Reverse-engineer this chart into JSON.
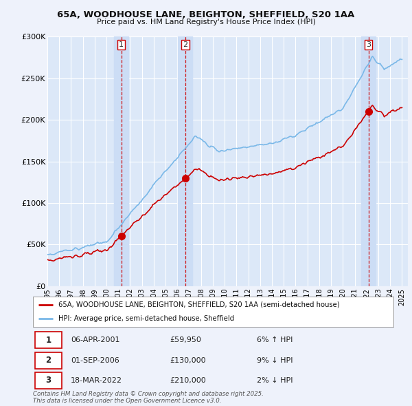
{
  "title_line1": "65A, WOODHOUSE LANE, BEIGHTON, SHEFFIELD, S20 1AA",
  "title_line2": "Price paid vs. HM Land Registry's House Price Index (HPI)",
  "background_color": "#eef2fb",
  "plot_bg_color": "#dce8f8",
  "grid_color": "#ffffff",
  "sale_color": "#cc0000",
  "hpi_color": "#7ab8e8",
  "vline_color": "#cc0000",
  "shade_color": "#ccddf5",
  "legend_sale_label": "65A, WOODHOUSE LANE, BEIGHTON, SHEFFIELD, S20 1AA (semi-detached house)",
  "legend_hpi_label": "HPI: Average price, semi-detached house, Sheffield",
  "table_data": [
    [
      "1",
      "06-APR-2001",
      "£59,950",
      "6% ↑ HPI"
    ],
    [
      "2",
      "01-SEP-2006",
      "£130,000",
      "9% ↓ HPI"
    ],
    [
      "3",
      "18-MAR-2022",
      "£210,000",
      "2% ↓ HPI"
    ]
  ],
  "footer": "Contains HM Land Registry data © Crown copyright and database right 2025.\nThis data is licensed under the Open Government Licence v3.0.",
  "ylim": [
    0,
    300000
  ],
  "yticks": [
    0,
    50000,
    100000,
    150000,
    200000,
    250000,
    300000
  ],
  "ytick_labels": [
    "£0",
    "£50K",
    "£100K",
    "£150K",
    "£200K",
    "£250K",
    "£300K"
  ],
  "sale_year_nums": [
    2001.25,
    2006.667,
    2022.167
  ],
  "sale_prices": [
    59950,
    130000,
    210000
  ],
  "sale_labels": [
    "1",
    "2",
    "3"
  ]
}
